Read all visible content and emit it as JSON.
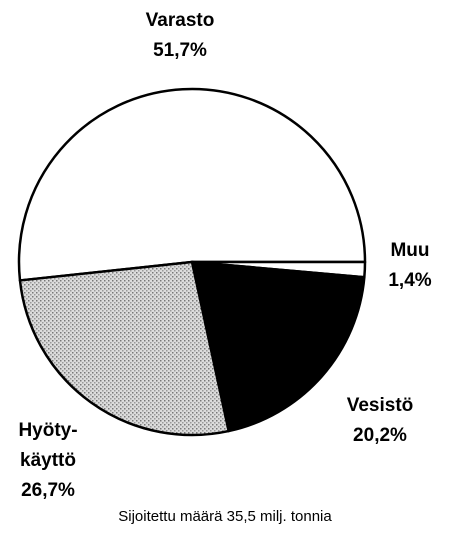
{
  "chart_data": {
    "type": "pie",
    "categories": [
      "Varasto",
      "Muu",
      "Vesistö",
      "Hyöty-käyttö"
    ],
    "values": [
      51.7,
      1.4,
      20.2,
      26.7
    ],
    "value_labels": [
      "51,7%",
      "1,4%",
      "20,2%",
      "26,7%"
    ],
    "colors": [
      "#ffffff",
      "#ffffff",
      "#000000",
      "#c8c8c8"
    ],
    "caption": "Sijoitettu määrä 35,5 milj. tonnia"
  }
}
